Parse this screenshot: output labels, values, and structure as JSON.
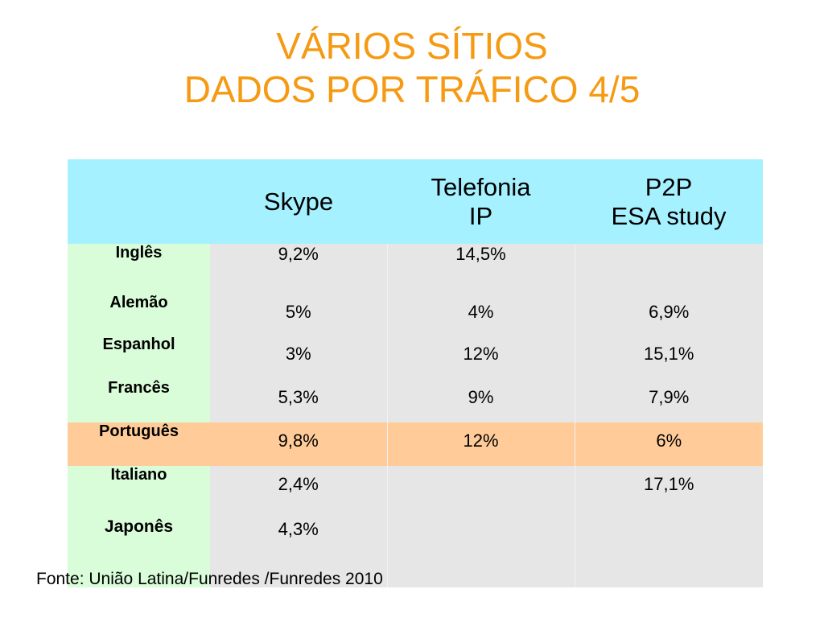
{
  "title": {
    "line1": "VÁRIOS SÍTIOS",
    "line2": "DADOS POR TRÁFICO 4/5"
  },
  "table": {
    "headers": [
      {
        "lines": [
          "",
          ""
        ]
      },
      {
        "lines": [
          "Skype",
          ""
        ]
      },
      {
        "lines": [
          "Telefonia",
          "IP"
        ]
      },
      {
        "lines": [
          "P2P",
          "ESA study"
        ]
      }
    ],
    "rows": [
      {
        "language": "Inglês",
        "skype": "9,2%",
        "telefonia_ip": "14,5%",
        "p2p": ""
      },
      {
        "language": "Alemão",
        "skype": "5%",
        "telefonia_ip": "4%",
        "p2p": "6,9%"
      },
      {
        "language": "Espanhol",
        "skype": "3%",
        "telefonia_ip": "12%",
        "p2p": "15,1%"
      },
      {
        "language": "Francês",
        "skype": "5,3%",
        "telefonia_ip": "9%",
        "p2p": "7,9%"
      },
      {
        "language": "Português",
        "skype": "9,8%",
        "telefonia_ip": "12%",
        "p2p": "6%",
        "highlighted": true
      },
      {
        "language": "Italiano",
        "skype": "2,4%",
        "telefonia_ip": "",
        "p2p": "17,1%"
      },
      {
        "language": "Japonês",
        "skype": "4,3%",
        "telefonia_ip": "",
        "p2p": ""
      }
    ]
  },
  "source": "Fonte: União Latina/Funredes /Funredes 2010",
  "colors": {
    "title": "#f59a12",
    "header_bg": "#a6f1ff",
    "language_bg": "#d9fcd9",
    "value_bg": "#e6e6e6",
    "highlight_bg": "#ffcc99"
  }
}
